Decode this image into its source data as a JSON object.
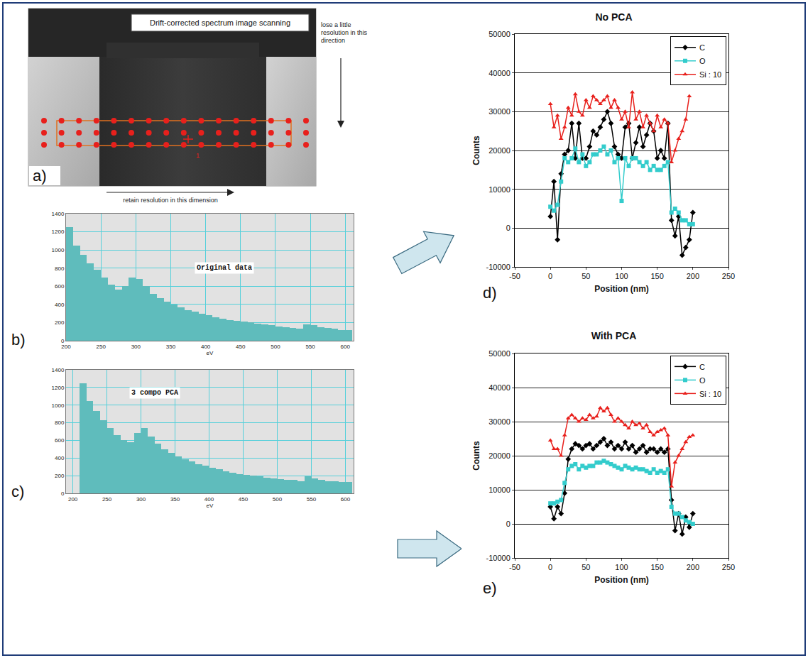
{
  "image": {
    "label": "a)",
    "banner": "Drift-corrected spectrum image scanning",
    "vertical_note": "lose a little resolution in this direction",
    "horizontal_note": "retain resolution in this dimension",
    "marker_label": "1"
  },
  "chart_data": [
    {
      "type": "bar",
      "label": "b)",
      "annotation": "Original data",
      "x_label": "eV",
      "color": "#5fbcbc",
      "grid": true,
      "x": [
        205,
        215,
        225,
        235,
        245,
        255,
        265,
        275,
        285,
        295,
        305,
        315,
        325,
        335,
        345,
        355,
        365,
        375,
        385,
        395,
        405,
        415,
        425,
        435,
        445,
        455,
        465,
        475,
        485,
        495,
        505,
        515,
        525,
        535,
        545,
        555,
        565,
        575,
        585,
        595,
        605
      ],
      "values": [
        1250,
        1050,
        950,
        850,
        780,
        700,
        620,
        560,
        600,
        700,
        680,
        600,
        520,
        470,
        430,
        400,
        370,
        340,
        320,
        300,
        280,
        260,
        240,
        230,
        220,
        210,
        200,
        190,
        180,
        170,
        160,
        150,
        140,
        130,
        180,
        170,
        150,
        140,
        130,
        120,
        120
      ],
      "xlim": [
        200,
        612
      ],
      "xticks": [
        200,
        250,
        300,
        350,
        400,
        450,
        500,
        550,
        600
      ],
      "ylim": [
        0,
        1400
      ],
      "yticks": [
        0,
        200,
        400,
        600,
        800,
        1000,
        1200,
        1400
      ]
    },
    {
      "type": "bar",
      "label": "c)",
      "annotation": "3 compo PCA",
      "x_label": "eV",
      "color": "#5fbcbc",
      "grid": true,
      "x": [
        215,
        225,
        235,
        245,
        255,
        265,
        275,
        285,
        295,
        305,
        315,
        325,
        335,
        345,
        355,
        365,
        375,
        385,
        395,
        405,
        415,
        425,
        435,
        445,
        455,
        465,
        475,
        485,
        495,
        505,
        515,
        525,
        535,
        545,
        555,
        565,
        575,
        585,
        595,
        605
      ],
      "values": [
        1250,
        1050,
        930,
        830,
        740,
        660,
        600,
        580,
        680,
        740,
        640,
        560,
        500,
        460,
        420,
        390,
        360,
        330,
        310,
        290,
        270,
        250,
        235,
        220,
        210,
        200,
        190,
        180,
        170,
        160,
        155,
        150,
        140,
        190,
        170,
        150,
        140,
        135,
        130,
        125
      ],
      "xlim": [
        190,
        612
      ],
      "xticks": [
        200,
        250,
        300,
        350,
        400,
        450,
        500,
        550,
        600
      ],
      "ylim": [
        0,
        1400
      ],
      "yticks": [
        0,
        200,
        400,
        600,
        800,
        1000,
        1200,
        1400
      ]
    },
    {
      "type": "line",
      "label": "d)",
      "title": "No PCA",
      "x_label": "Position (nm)",
      "y_label": "Counts",
      "grid": true,
      "legend": "upper right",
      "x": [
        0,
        5,
        10,
        15,
        20,
        25,
        30,
        35,
        40,
        45,
        50,
        55,
        60,
        65,
        70,
        75,
        80,
        85,
        90,
        95,
        100,
        105,
        110,
        115,
        120,
        125,
        130,
        135,
        140,
        145,
        150,
        155,
        160,
        165,
        170,
        175,
        180,
        185,
        190,
        195,
        200
      ],
      "series": [
        {
          "name": "C",
          "color": "#000000",
          "marker": "diamond",
          "line_style": "solid",
          "values": [
            3000,
            12000,
            -3000,
            14000,
            19000,
            20000,
            27000,
            18000,
            27000,
            18000,
            18000,
            21000,
            25000,
            24000,
            26000,
            28000,
            30000,
            27000,
            21000,
            19000,
            18000,
            26000,
            27000,
            18000,
            22000,
            26000,
            21000,
            24000,
            27000,
            25000,
            18000,
            20000,
            18000,
            27000,
            2000,
            -2000,
            3000,
            -7000,
            -5000,
            -3000,
            4000
          ]
        },
        {
          "name": "O",
          "color": "#33cccc",
          "marker": "square",
          "line_style": "solid",
          "values": [
            5500,
            4500,
            6000,
            12000,
            18000,
            17000,
            18000,
            20500,
            17000,
            19000,
            16000,
            17000,
            19000,
            19000,
            20000,
            21000,
            19000,
            20000,
            17000,
            18000,
            7000,
            18000,
            16000,
            18000,
            18000,
            17000,
            16000,
            17000,
            15000,
            16000,
            15000,
            15000,
            16000,
            17000,
            4000,
            5000,
            4000,
            2000,
            2000,
            1000,
            1000
          ]
        },
        {
          "name": "Si : 10",
          "color": "#e8201c",
          "marker": "triangle-up",
          "line_style": "solid",
          "values": [
            32000,
            26000,
            29000,
            23000,
            26000,
            31000,
            29000,
            34500,
            30000,
            29000,
            33000,
            31000,
            34000,
            33000,
            32000,
            33000,
            34000,
            31000,
            33000,
            31000,
            28000,
            30000,
            26000,
            35000,
            28000,
            30000,
            26000,
            29000,
            27000,
            25000,
            29000,
            26000,
            28000,
            27000,
            17000,
            20000,
            23000,
            25000,
            28000,
            34000,
            null
          ]
        }
      ],
      "xlim": [
        -50,
        250
      ],
      "xticks": [
        -50,
        0,
        50,
        100,
        150,
        200,
        250
      ],
      "ylim": [
        -10000,
        50000
      ],
      "yticks": [
        -10000,
        0,
        10000,
        20000,
        30000,
        40000,
        50000
      ]
    },
    {
      "type": "line",
      "label": "e)",
      "title": "With PCA",
      "x_label": "Position (nm)",
      "y_label": "Counts",
      "grid": true,
      "legend": "upper right",
      "x": [
        0,
        5,
        10,
        15,
        20,
        25,
        30,
        35,
        40,
        45,
        50,
        55,
        60,
        65,
        70,
        75,
        80,
        85,
        90,
        95,
        100,
        105,
        110,
        115,
        120,
        125,
        130,
        135,
        140,
        145,
        150,
        155,
        160,
        165,
        170,
        175,
        180,
        185,
        190,
        195,
        200
      ],
      "series": [
        {
          "name": "C",
          "color": "#000000",
          "marker": "diamond",
          "line_style": "solid",
          "values": [
            5000,
            1500,
            5000,
            3000,
            9000,
            19000,
            22000,
            23500,
            23000,
            22000,
            23000,
            23500,
            22000,
            23000,
            24000,
            25000,
            23000,
            24000,
            22000,
            23000,
            22000,
            24000,
            22000,
            23000,
            21000,
            22000,
            23000,
            21000,
            22000,
            22000,
            21000,
            22000,
            21000,
            22000,
            7000,
            -2000,
            3000,
            -3000,
            2000,
            -1000,
            3000
          ]
        },
        {
          "name": "O",
          "color": "#33cccc",
          "marker": "square",
          "line_style": "solid",
          "values": [
            6000,
            6000,
            6500,
            7000,
            12000,
            16000,
            17000,
            17500,
            16000,
            17000,
            16500,
            17000,
            17000,
            18000,
            18000,
            18500,
            18000,
            17500,
            17000,
            16500,
            16000,
            17000,
            16500,
            16000,
            16500,
            16000,
            16000,
            15500,
            15000,
            16000,
            15000,
            15500,
            15000,
            16000,
            5000,
            3000,
            3000,
            2000,
            1000,
            500,
            0
          ]
        },
        {
          "name": "Si : 10",
          "color": "#e8201c",
          "marker": "triangle-up",
          "line_style": "solid",
          "values": [
            24500,
            22000,
            22000,
            20000,
            26000,
            31000,
            32000,
            31000,
            30000,
            31000,
            30500,
            32000,
            31000,
            31500,
            34000,
            33000,
            34000,
            32000,
            30000,
            31000,
            30000,
            29000,
            28000,
            30000,
            29000,
            29500,
            28000,
            29000,
            27000,
            26000,
            27000,
            27500,
            28000,
            26000,
            11000,
            18000,
            20000,
            22000,
            24000,
            25500,
            26000
          ]
        }
      ],
      "xlim": [
        -50,
        250
      ],
      "xticks": [
        -50,
        0,
        50,
        100,
        150,
        200,
        250
      ],
      "ylim": [
        -10000,
        50000
      ],
      "yticks": [
        -10000,
        0,
        10000,
        20000,
        30000,
        40000,
        50000
      ]
    }
  ]
}
